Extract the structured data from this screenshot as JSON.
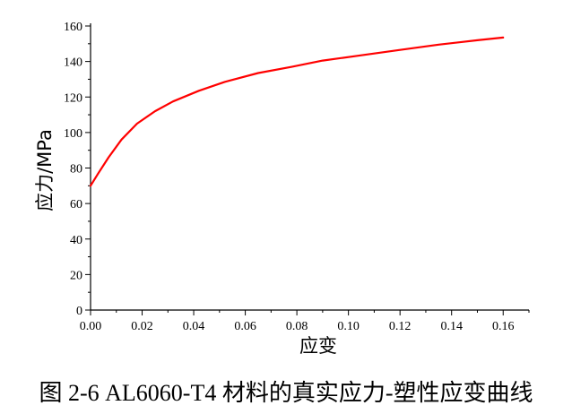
{
  "caption": "图 2-6 AL6060-T4 材料的真实应力-塑性应变曲线",
  "chart_data": {
    "type": "line",
    "xlabel": "应变",
    "ylabel": "应力/MPa",
    "xlim": [
      0,
      0.17
    ],
    "ylim": [
      0,
      160
    ],
    "x_ticks": [
      "0.00",
      "0.02",
      "0.04",
      "0.06",
      "0.08",
      "0.10",
      "0.12",
      "0.14",
      "0.16"
    ],
    "y_ticks": [
      "0",
      "20",
      "40",
      "60",
      "80",
      "100",
      "120",
      "140",
      "160"
    ],
    "line_color": "#ff0000",
    "series": [
      {
        "x": [
          0.0,
          0.003,
          0.007,
          0.012,
          0.018,
          0.025,
          0.032,
          0.042,
          0.052,
          0.065,
          0.078,
          0.09,
          0.105,
          0.12,
          0.135,
          0.15,
          0.16
        ],
        "y": [
          70,
          77,
          86,
          96,
          105,
          112,
          117.5,
          123.5,
          128.5,
          133.5,
          137,
          140.5,
          143.5,
          146.5,
          149.5,
          152,
          153.5
        ]
      }
    ]
  }
}
